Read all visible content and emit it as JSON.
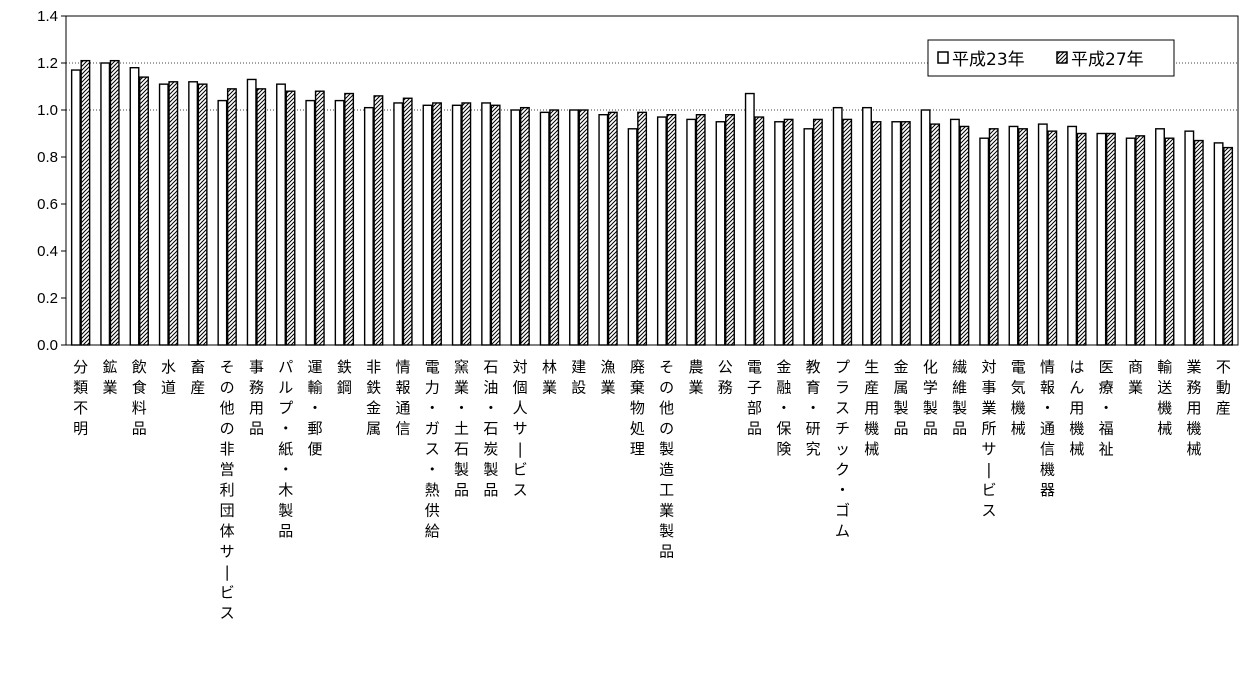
{
  "chart_data": {
    "type": "bar",
    "title": "",
    "xlabel": "",
    "ylabel": "",
    "ylim": [
      0,
      1.4
    ],
    "yticks": [
      "0.0",
      "0.2",
      "0.4",
      "0.6",
      "0.8",
      "1.0",
      "1.2",
      "1.4"
    ],
    "ytick_values": [
      0,
      0.2,
      0.4,
      0.6,
      0.8,
      1.0,
      1.2,
      1.4
    ],
    "grid": "horizontal dotted at 1.0 and 1.2",
    "legend_position": "top-right",
    "categories": [
      "分類不明",
      "鉱業",
      "飲食料品",
      "水道",
      "畜産",
      "その他の非営利団体サービス",
      "事務用品",
      "パルプ・紙・木製品",
      "運輸・郵便",
      "鉄鋼",
      "非鉄金属",
      "情報通信",
      "電力・ガス・熱供給",
      "窯業・土石製品",
      "石油・石炭製品",
      "対個人サービス",
      "林業",
      "建設",
      "漁業",
      "廃棄物処理",
      "その他の製造工業製品",
      "農業",
      "公務",
      "電子部品",
      "金融・保険",
      "教育・研究",
      "プラスチック・ゴム",
      "生産用機械",
      "金属製品",
      "化学製品",
      "繊維製品",
      "対事業所サービス",
      "電気機械",
      "情報・通信機器",
      "はん用機械",
      "医療・福祉",
      "商業",
      "輸送機械",
      "業務用機械",
      "不動産"
    ],
    "series": [
      {
        "name": "平成23年",
        "pattern": "white",
        "values": [
          1.17,
          1.2,
          1.18,
          1.11,
          1.12,
          1.04,
          1.13,
          1.11,
          1.04,
          1.04,
          1.01,
          1.03,
          1.02,
          1.02,
          1.03,
          1.0,
          0.99,
          1.0,
          0.98,
          0.92,
          0.97,
          0.96,
          0.95,
          1.07,
          0.95,
          0.92,
          1.01,
          1.01,
          0.95,
          1.0,
          0.96,
          0.88,
          0.93,
          0.94,
          0.93,
          0.9,
          0.88,
          0.92,
          0.91,
          0.86
        ]
      },
      {
        "name": "平成27年",
        "pattern": "hatched",
        "values": [
          1.21,
          1.21,
          1.14,
          1.12,
          1.11,
          1.09,
          1.09,
          1.08,
          1.08,
          1.07,
          1.06,
          1.05,
          1.03,
          1.03,
          1.02,
          1.01,
          1.0,
          1.0,
          0.99,
          0.99,
          0.98,
          0.98,
          0.98,
          0.97,
          0.96,
          0.96,
          0.96,
          0.95,
          0.95,
          0.94,
          0.93,
          0.92,
          0.92,
          0.91,
          0.9,
          0.9,
          0.89,
          0.88,
          0.87,
          0.84
        ]
      }
    ]
  }
}
